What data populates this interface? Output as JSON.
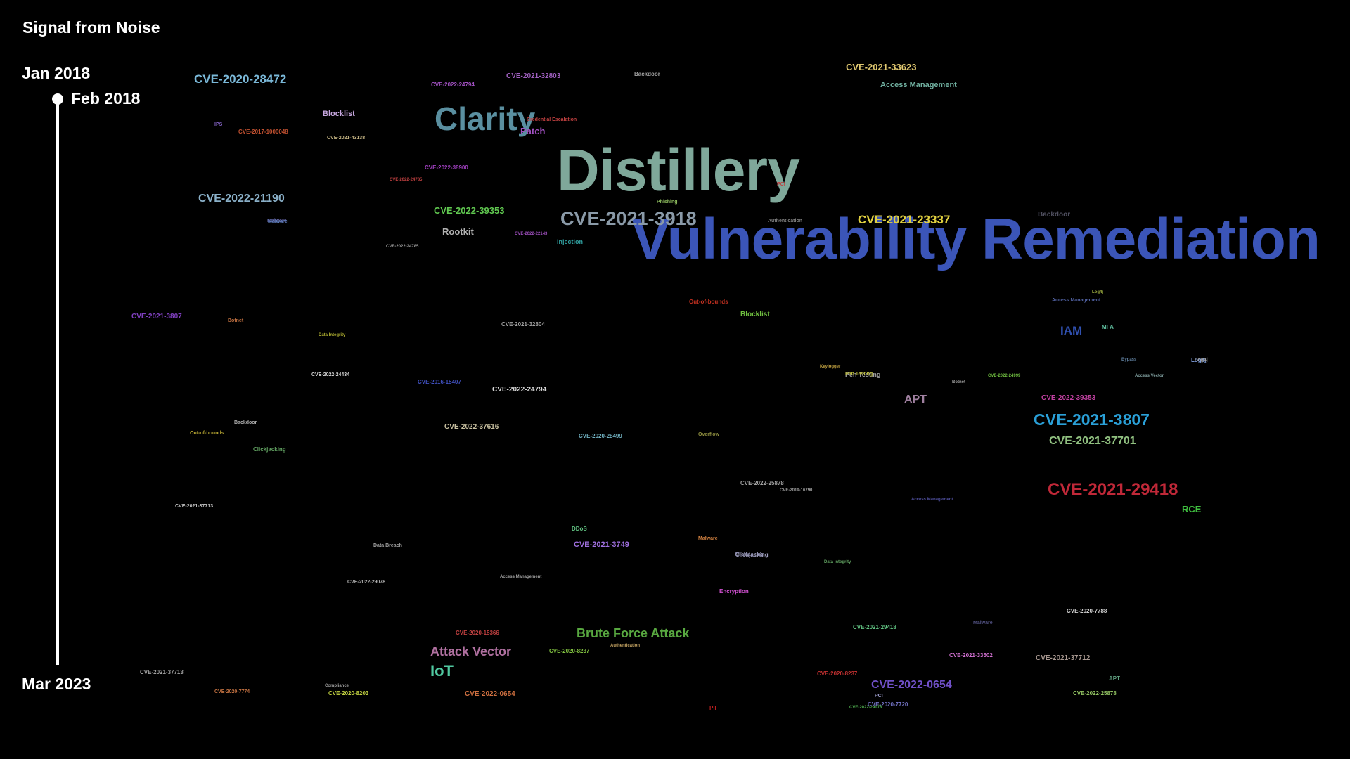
{
  "app": {
    "title": "Signal from Noise"
  },
  "timeline": {
    "start_label": "Jan 2018",
    "current_label": "Feb 2018",
    "end_label": "Mar 2023"
  },
  "terms": [
    {
      "text": "Vulnerability Remediation",
      "color": "#3b55b8"
    },
    {
      "text": "Distillery",
      "color": "#7fa89a"
    },
    {
      "text": "Clarity",
      "color": "#5a8fa0"
    },
    {
      "text": "CVE-2021-3918",
      "color": "#8a9aa8"
    },
    {
      "text": "CVE-2021-23337",
      "color": "#e0d040"
    },
    {
      "text": "CVE-2020-28472",
      "color": "#7ab8d8"
    },
    {
      "text": "CVE-2022-21190",
      "color": "#8ab0c8"
    },
    {
      "text": "CVE-2021-3807",
      "color": "#2aa0d8"
    },
    {
      "text": "CVE-2021-29418",
      "color": "#c02838"
    },
    {
      "text": "CVE-2021-37701",
      "color": "#90c080"
    },
    {
      "text": "CVE-2022-0654",
      "color": "#7050c8"
    },
    {
      "text": "Brute Force Attack",
      "color": "#58a840"
    },
    {
      "text": "Attack Vector",
      "color": "#b070a0"
    },
    {
      "text": "IoT",
      "color": "#50c8a0"
    },
    {
      "text": "CVE-2021-33623",
      "color": "#e0c870"
    },
    {
      "text": "Access Management",
      "color": "#70b0a0"
    },
    {
      "text": "CVE-2022-39353",
      "color": "#60c850"
    },
    {
      "text": "Rootkit",
      "color": "#b0b0b0"
    },
    {
      "text": "Blocklist",
      "color": "#c8a8e0"
    },
    {
      "text": "IAM",
      "color": "#3050b0"
    },
    {
      "text": "APT",
      "color": "#a080a0"
    },
    {
      "text": "CVE-2021-3807",
      "color": "#8040c0"
    },
    {
      "text": "CVE-2021-32803",
      "color": "#a060c0"
    },
    {
      "text": "CVE-2022-24794",
      "color": "#d8d8d8"
    },
    {
      "text": "CVE-2022-37616",
      "color": "#c8c0a0"
    },
    {
      "text": "CVE-2022-39353",
      "color": "#c040a0"
    },
    {
      "text": "RCE",
      "color": "#40c040"
    },
    {
      "text": "CVE-2021-3749",
      "color": "#a070e0"
    },
    {
      "text": "CVE-2022-0654",
      "color": "#d07040"
    },
    {
      "text": "Blocklist",
      "color": "#70c040"
    },
    {
      "text": "Patch",
      "color": "#a050c0"
    },
    {
      "text": "CVE-2020-28499",
      "color": "#70b0c0"
    },
    {
      "text": "CVE-2021-37712",
      "color": "#a89890"
    },
    {
      "text": "CVE-2022-25878",
      "color": "#a0a0a0"
    },
    {
      "text": "CVE-2016-15407",
      "color": "#4050c0"
    },
    {
      "text": "CVE-2021-32804",
      "color": "#a0a0a0"
    },
    {
      "text": "Pen Testing",
      "color": "#a0a0a0"
    },
    {
      "text": "Backdoor",
      "color": "#a0a0a0"
    },
    {
      "text": "Injection",
      "color": "#30a0a0"
    },
    {
      "text": "Backdoor",
      "color": "#505060"
    },
    {
      "text": "Out-of-bounds",
      "color": "#c03020"
    },
    {
      "text": "Malware",
      "color": "#6060a0"
    },
    {
      "text": "Log4j",
      "color": "#80a0e0"
    },
    {
      "text": "CVE-2022-24794",
      "color": "#a050c0"
    },
    {
      "text": "CVE-2017-1000048",
      "color": "#c05030"
    },
    {
      "text": "CVE-2021-43138",
      "color": "#c0b080"
    },
    {
      "text": "CVE-2022-38900",
      "color": "#a040c0"
    },
    {
      "text": "CVE-2020-7788",
      "color": "#d0d0d0"
    },
    {
      "text": "CVE-2021-29418",
      "color": "#60c080"
    },
    {
      "text": "CVE-2021-33502",
      "color": "#d070d0"
    },
    {
      "text": "CVE-2020-8237",
      "color": "#c03030"
    },
    {
      "text": "CVE-2020-8203",
      "color": "#c0d040"
    },
    {
      "text": "CVE-2022-25878",
      "color": "#90c060"
    },
    {
      "text": "CVE-2021-37713",
      "color": "#a0a0a0"
    },
    {
      "text": "CVE-2020-8237",
      "color": "#80c040"
    },
    {
      "text": "Encryption",
      "color": "#d050d0"
    },
    {
      "text": "Clickjacking",
      "color": "#a0a0c0"
    },
    {
      "text": "APT",
      "color": "#60a080"
    },
    {
      "text": "MFA",
      "color": "#60c0a0"
    },
    {
      "text": "Phishing",
      "color": "#90c060"
    },
    {
      "text": "Botnet",
      "color": "#c07040"
    },
    {
      "text": "DDoS",
      "color": "#60c080"
    },
    {
      "text": "Overflow",
      "color": "#909040"
    },
    {
      "text": "Clickjacking",
      "color": "#60a060"
    },
    {
      "text": "Data Breach",
      "color": "#a0a0a0"
    },
    {
      "text": "CVE-2022-24434",
      "color": "#d0d0d0"
    },
    {
      "text": "Backdoor",
      "color": "#b0b0b0"
    },
    {
      "text": "Malware",
      "color": "#6080c0"
    },
    {
      "text": "Authentication",
      "color": "#808080"
    },
    {
      "text": "Credential Escalation",
      "color": "#c04040"
    },
    {
      "text": "IPS",
      "color": "#8060c0"
    },
    {
      "text": "CVE-2020-15366",
      "color": "#c04040"
    },
    {
      "text": "Compliance",
      "color": "#a0a0a0"
    },
    {
      "text": "PII",
      "color": "#c02020"
    },
    {
      "text": "Out-of-bounds",
      "color": "#b0a030"
    },
    {
      "text": "CVE-2022-22143",
      "color": "#a050c0"
    },
    {
      "text": "Log4j",
      "color": "#a0a0a0"
    },
    {
      "text": "Pen Testing",
      "color": "#c0c040"
    },
    {
      "text": "Access Vector",
      "color": "#80a0a0"
    },
    {
      "text": "Bypass",
      "color": "#6080a0"
    },
    {
      "text": "Botnet",
      "color": "#a0a0a0"
    },
    {
      "text": "CVE-2022-24999",
      "color": "#70c040"
    },
    {
      "text": "CVE-2022-24785",
      "color": "#c04040"
    },
    {
      "text": "CVE-2019-16790",
      "color": "#a0a0a0"
    },
    {
      "text": "Data Integrity",
      "color": "#b0b030"
    },
    {
      "text": "Authentication",
      "color": "#c0a060"
    },
    {
      "text": "Access Management",
      "color": "#a0a0a0"
    },
    {
      "text": "CVE-2022-29078",
      "color": "#b0b0b0"
    },
    {
      "text": "CVE-2020-7774",
      "color": "#c07040"
    },
    {
      "text": "CVE-2021-37713",
      "color": "#c0c0c0"
    },
    {
      "text": "Malware",
      "color": "#d08040"
    },
    {
      "text": "Clickjacking",
      "color": "#9090b0"
    },
    {
      "text": "CVE-2022-29078",
      "color": "#50b050"
    },
    {
      "text": "Data Integrity",
      "color": "#60a060"
    },
    {
      "text": "CVE-2020-7720",
      "color": "#7070c0"
    },
    {
      "text": "PCI",
      "color": "#a0a0d0"
    },
    {
      "text": "Malware",
      "color": "#505080"
    },
    {
      "text": "Access Management",
      "color": "#5050a0"
    },
    {
      "text": "CVE-2022-24785",
      "color": "#a0a0a0"
    },
    {
      "text": "Keylogger",
      "color": "#c0a040"
    },
    {
      "text": "PCI",
      "color": "#c04040"
    },
    {
      "text": "Log4j",
      "color": "#a0b040"
    },
    {
      "text": "Access Management",
      "color": "#5060a0"
    }
  ]
}
